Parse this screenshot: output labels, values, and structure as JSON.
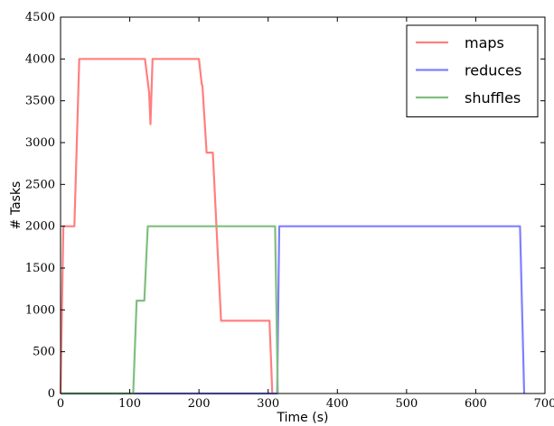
{
  "chart_data": {
    "type": "line",
    "title": "",
    "xlabel": "Time (s)",
    "ylabel": "# Tasks",
    "xlim": [
      0,
      700
    ],
    "ylim": [
      0,
      4500
    ],
    "xticks": [
      0,
      100,
      200,
      300,
      400,
      500,
      600,
      700
    ],
    "yticks": [
      0,
      500,
      1000,
      1500,
      2000,
      2500,
      3000,
      3500,
      4000,
      4500
    ],
    "grid": false,
    "legend_position": "top-right",
    "series": [
      {
        "name": "maps",
        "color": "#ff7f7f",
        "points": [
          [
            0,
            0
          ],
          [
            4,
            2000
          ],
          [
            20,
            2000
          ],
          [
            27,
            4000
          ],
          [
            122,
            4000
          ],
          [
            128,
            3600
          ],
          [
            130,
            3220
          ],
          [
            133,
            4000
          ],
          [
            200,
            4000
          ],
          [
            204,
            3700
          ],
          [
            205,
            3680
          ],
          [
            211,
            2880
          ],
          [
            220,
            2880
          ],
          [
            232,
            870
          ],
          [
            302,
            870
          ],
          [
            306,
            0
          ]
        ]
      },
      {
        "name": "reduces",
        "color": "#7f7fff",
        "points": [
          [
            0,
            0
          ],
          [
            313,
            0
          ],
          [
            316,
            2000
          ],
          [
            664,
            2000
          ],
          [
            670,
            0
          ]
        ]
      },
      {
        "name": "shuffles",
        "color": "#7fbf7f",
        "points": [
          [
            0,
            0
          ],
          [
            105,
            0
          ],
          [
            110,
            1110
          ],
          [
            121,
            1110
          ],
          [
            126,
            2000
          ],
          [
            310,
            2000
          ],
          [
            314,
            0
          ]
        ]
      }
    ]
  }
}
